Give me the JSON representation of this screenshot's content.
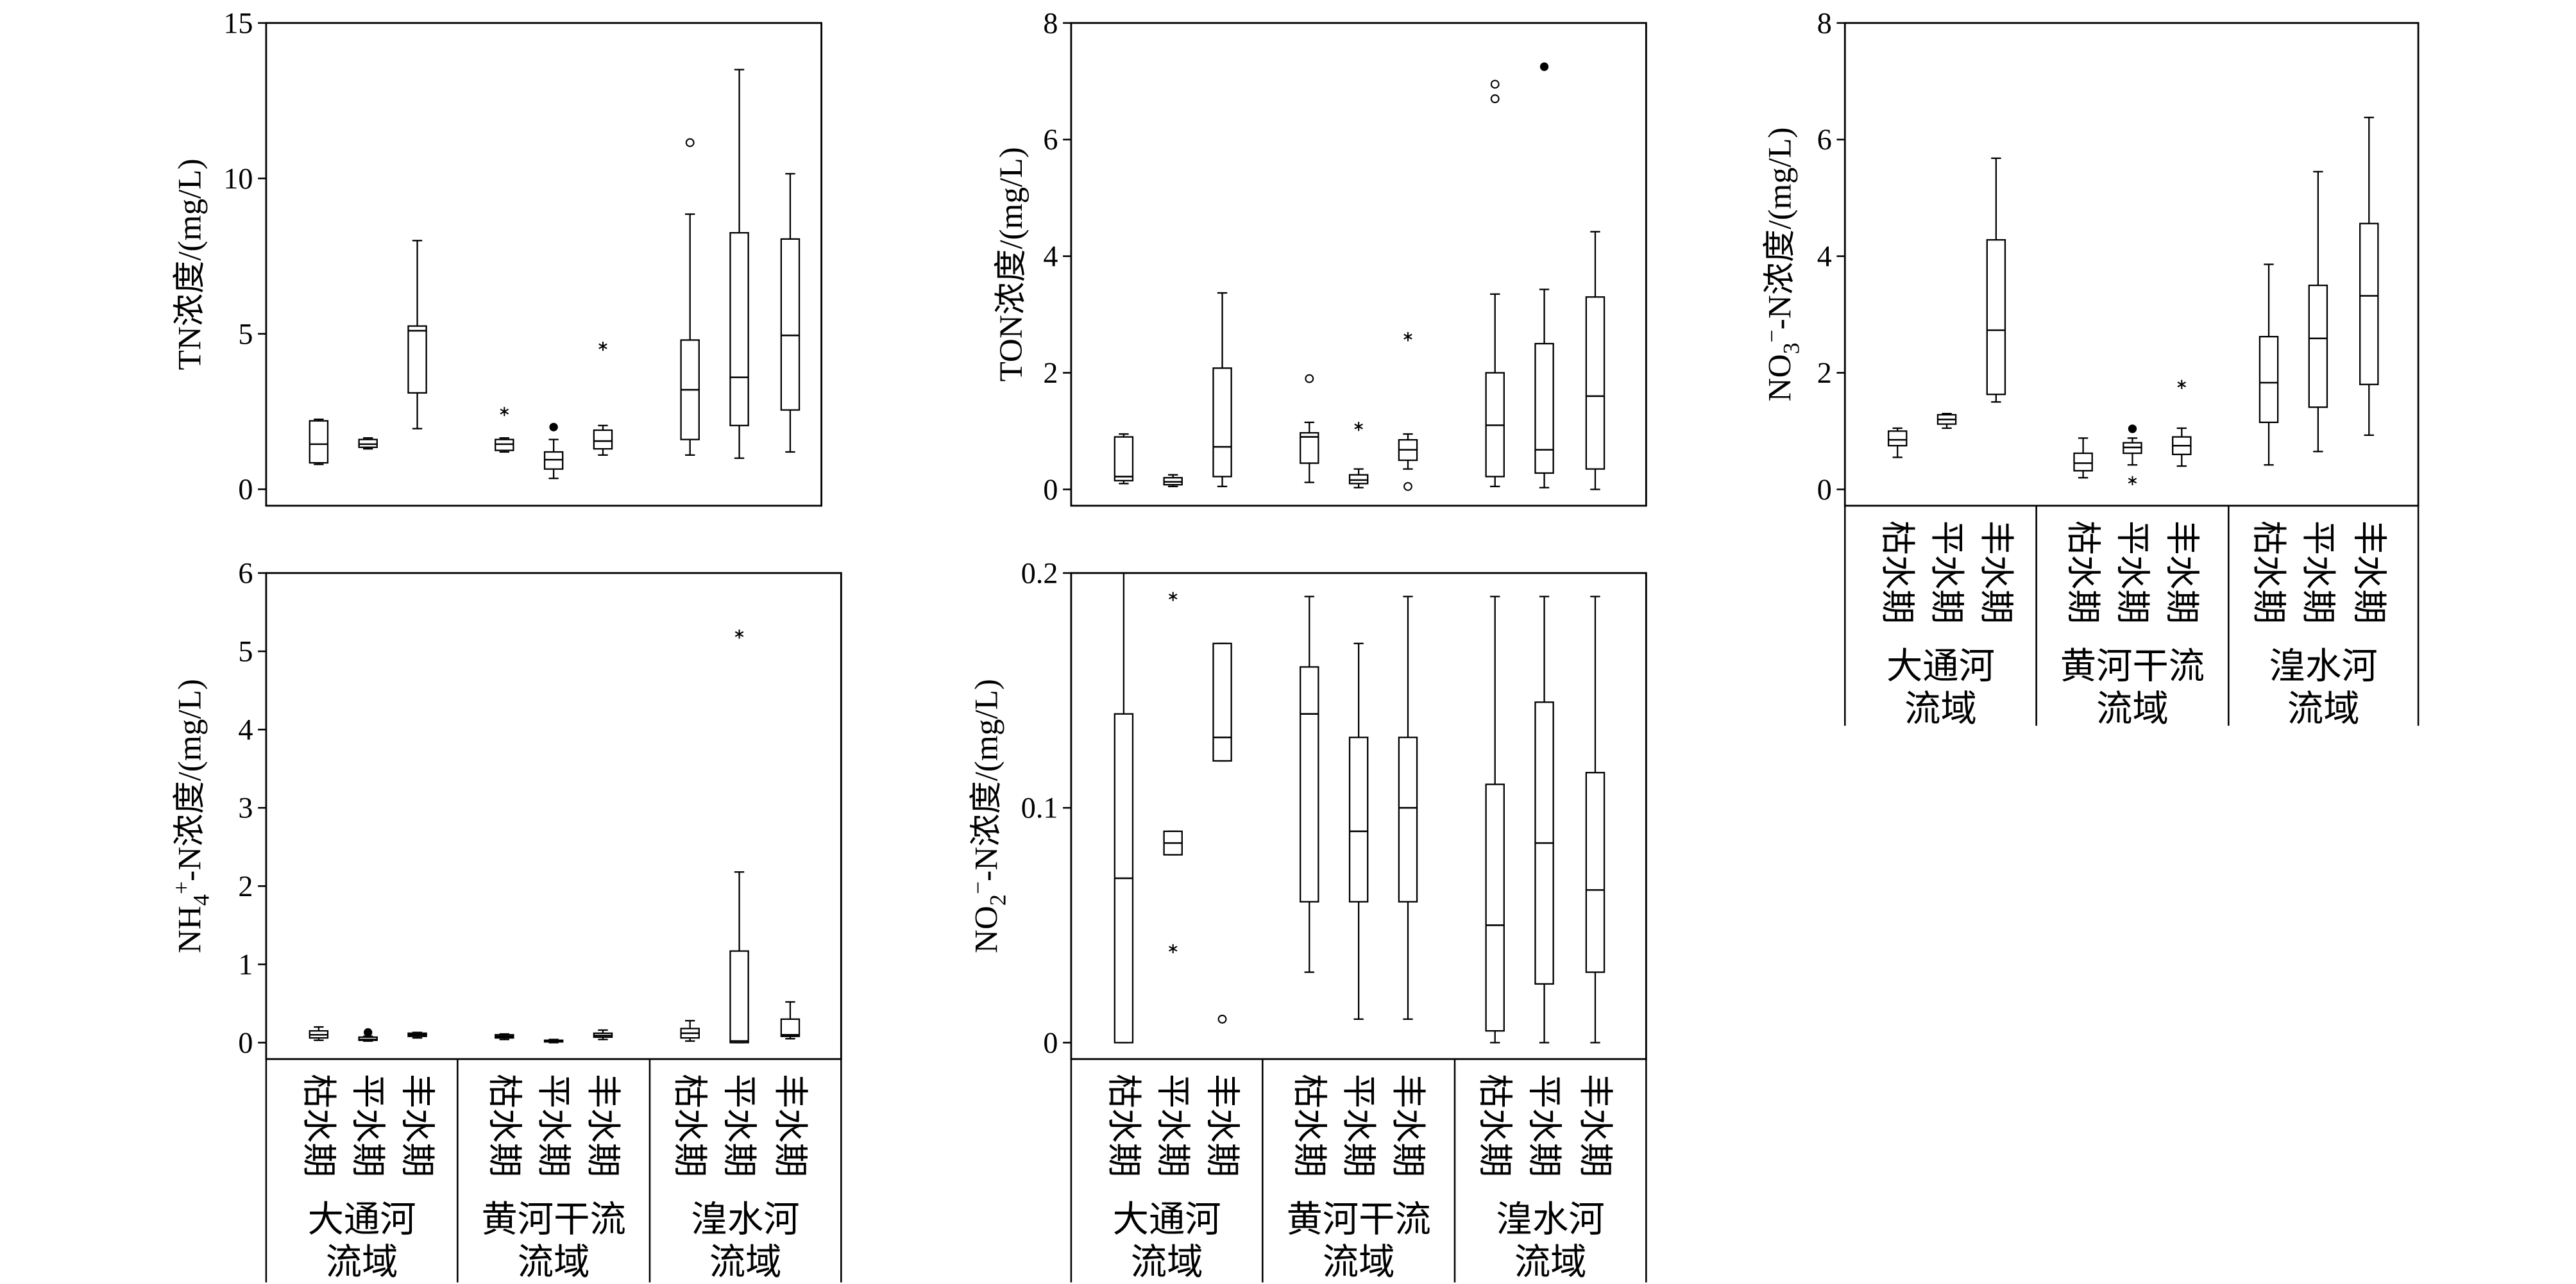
{
  "chart_data": [
    {
      "type": "box",
      "ylabel": [
        {
          "t": "TN浓度/(mg/L)"
        }
      ],
      "ylim": [
        -0.53,
        15
      ],
      "yticks": [
        0,
        5,
        10,
        15
      ],
      "boxes": [
        {
          "min": 0.8,
          "q1": 0.85,
          "median": 1.45,
          "q3": 2.2,
          "max": 2.25,
          "outliers": []
        },
        {
          "min": 1.3,
          "q1": 1.35,
          "median": 1.45,
          "q3": 1.6,
          "max": 1.65,
          "outliers": []
        },
        {
          "min": 1.95,
          "q1": 3.1,
          "median": 5.1,
          "q3": 5.25,
          "max": 8.0,
          "outliers": []
        },
        {
          "min": 1.2,
          "q1": 1.25,
          "median": 1.45,
          "q3": 1.6,
          "max": 1.65,
          "outliers": [
            {
              "v": 2.5,
              "m": "asterisk"
            }
          ]
        },
        {
          "min": 0.35,
          "q1": 0.65,
          "median": 0.95,
          "q3": 1.2,
          "max": 1.6,
          "outliers": [
            {
              "v": 2.0,
              "m": "filled-circle"
            }
          ]
        },
        {
          "min": 1.1,
          "q1": 1.3,
          "median": 1.55,
          "q3": 1.9,
          "max": 2.05,
          "outliers": [
            {
              "v": 4.6,
              "m": "asterisk"
            }
          ]
        },
        {
          "min": 1.1,
          "q1": 1.6,
          "median": 3.2,
          "q3": 4.8,
          "max": 8.85,
          "outliers": [
            {
              "v": 11.15,
              "m": "open-circle"
            }
          ]
        },
        {
          "min": 1.0,
          "q1": 2.05,
          "median": 3.6,
          "q3": 8.25,
          "max": 13.5,
          "outliers": []
        },
        {
          "min": 1.2,
          "q1": 2.55,
          "median": 4.95,
          "q3": 8.05,
          "max": 10.15,
          "outliers": []
        }
      ]
    },
    {
      "type": "box",
      "ylabel": [
        {
          "t": "TON浓度/(mg/L)"
        }
      ],
      "ylim": [
        -0.28,
        8
      ],
      "yticks": [
        0,
        2,
        4,
        6,
        8
      ],
      "boxes": [
        {
          "min": 0.1,
          "q1": 0.15,
          "median": 0.22,
          "q3": 0.9,
          "max": 0.95,
          "outliers": []
        },
        {
          "min": 0.05,
          "q1": 0.08,
          "median": 0.13,
          "q3": 0.2,
          "max": 0.25,
          "outliers": []
        },
        {
          "min": 0.05,
          "q1": 0.22,
          "median": 0.73,
          "q3": 2.08,
          "max": 3.37,
          "outliers": []
        },
        {
          "min": 0.12,
          "q1": 0.45,
          "median": 0.9,
          "q3": 0.97,
          "max": 1.15,
          "outliers": [
            {
              "v": 1.9,
              "m": "open-circle"
            }
          ]
        },
        {
          "min": 0.03,
          "q1": 0.1,
          "median": 0.16,
          "q3": 0.25,
          "max": 0.35,
          "outliers": [
            {
              "v": 1.08,
              "m": "asterisk"
            }
          ]
        },
        {
          "min": 0.35,
          "q1": 0.5,
          "median": 0.68,
          "q3": 0.85,
          "max": 0.95,
          "outliers": [
            {
              "v": 2.62,
              "m": "asterisk"
            },
            {
              "v": 0.05,
              "m": "open-circle"
            }
          ]
        },
        {
          "min": 0.05,
          "q1": 0.22,
          "median": 1.1,
          "q3": 2.0,
          "max": 3.35,
          "outliers": [
            {
              "v": 6.95,
              "m": "open-circle"
            },
            {
              "v": 6.7,
              "m": "open-circle"
            }
          ]
        },
        {
          "min": 0.03,
          "q1": 0.28,
          "median": 0.68,
          "q3": 2.5,
          "max": 3.43,
          "outliers": [
            {
              "v": 7.25,
              "m": "filled-circle"
            }
          ]
        },
        {
          "min": 0.0,
          "q1": 0.35,
          "median": 1.6,
          "q3": 3.3,
          "max": 4.42,
          "outliers": []
        }
      ]
    },
    {
      "type": "box",
      "ylabel": [
        {
          "t": "NO"
        },
        {
          "t": "3",
          "sub": true
        },
        {
          "t": "−",
          "sup": true
        },
        {
          "t": "-N浓度/(mg/L)"
        }
      ],
      "ylim": [
        -0.28,
        8
      ],
      "yticks": [
        0,
        2,
        4,
        6,
        8
      ],
      "categories": [
        "枯水期",
        "平水期",
        "丰水期",
        "枯水期",
        "平水期",
        "丰水期",
        "枯水期",
        "平水期",
        "丰水期"
      ],
      "groups": [
        [
          "大通河",
          "流域"
        ],
        [
          "黄河干流",
          "流域"
        ],
        [
          "湟水河",
          "流域"
        ]
      ],
      "boxes": [
        {
          "min": 0.55,
          "q1": 0.75,
          "median": 0.85,
          "q3": 1.0,
          "max": 1.05,
          "outliers": []
        },
        {
          "min": 1.05,
          "q1": 1.12,
          "median": 1.2,
          "q3": 1.28,
          "max": 1.3,
          "outliers": []
        },
        {
          "min": 1.5,
          "q1": 1.63,
          "median": 2.73,
          "q3": 4.28,
          "max": 5.68,
          "outliers": []
        },
        {
          "min": 0.2,
          "q1": 0.32,
          "median": 0.45,
          "q3": 0.62,
          "max": 0.88,
          "outliers": []
        },
        {
          "min": 0.42,
          "q1": 0.62,
          "median": 0.72,
          "q3": 0.8,
          "max": 0.88,
          "outliers": [
            {
              "v": 1.04,
              "m": "filled-circle"
            },
            {
              "v": 0.15,
              "m": "asterisk"
            }
          ]
        },
        {
          "min": 0.4,
          "q1": 0.6,
          "median": 0.75,
          "q3": 0.9,
          "max": 1.05,
          "outliers": [
            {
              "v": 1.8,
              "m": "asterisk"
            }
          ]
        },
        {
          "min": 0.42,
          "q1": 1.15,
          "median": 1.83,
          "q3": 2.62,
          "max": 3.86,
          "outliers": []
        },
        {
          "min": 0.65,
          "q1": 1.41,
          "median": 2.59,
          "q3": 3.5,
          "max": 5.45,
          "outliers": []
        },
        {
          "min": 0.93,
          "q1": 1.8,
          "median": 3.32,
          "q3": 4.56,
          "max": 6.38,
          "outliers": []
        }
      ]
    },
    {
      "type": "box",
      "ylabel": [
        {
          "t": "NH"
        },
        {
          "t": "4",
          "sub": true
        },
        {
          "t": "+",
          "sup": true
        },
        {
          "t": "-N浓度/(mg/L)"
        }
      ],
      "ylim": [
        -0.21,
        6
      ],
      "yticks": [
        0,
        1,
        2,
        3,
        4,
        5,
        6
      ],
      "categories": [
        "枯水期",
        "平水期",
        "丰水期",
        "枯水期",
        "平水期",
        "丰水期",
        "枯水期",
        "平水期",
        "丰水期"
      ],
      "groups": [
        [
          "大通河",
          "流域"
        ],
        [
          "黄河干流",
          "流域"
        ],
        [
          "湟水河",
          "流域"
        ]
      ],
      "boxes": [
        {
          "min": 0.03,
          "q1": 0.06,
          "median": 0.1,
          "q3": 0.15,
          "max": 0.2,
          "outliers": []
        },
        {
          "min": 0.02,
          "q1": 0.03,
          "median": 0.04,
          "q3": 0.07,
          "max": 0.08,
          "outliers": [
            {
              "v": 0.13,
              "m": "filled-circle"
            }
          ]
        },
        {
          "min": 0.06,
          "q1": 0.08,
          "median": 0.1,
          "q3": 0.12,
          "max": 0.13,
          "outliers": []
        },
        {
          "min": 0.04,
          "q1": 0.06,
          "median": 0.08,
          "q3": 0.1,
          "max": 0.11,
          "outliers": []
        },
        {
          "min": 0.0,
          "q1": 0.01,
          "median": 0.02,
          "q3": 0.03,
          "max": 0.04,
          "outliers": []
        },
        {
          "min": 0.04,
          "q1": 0.07,
          "median": 0.09,
          "q3": 0.12,
          "max": 0.16,
          "outliers": []
        },
        {
          "min": 0.02,
          "q1": 0.06,
          "median": 0.12,
          "q3": 0.18,
          "max": 0.28,
          "outliers": []
        },
        {
          "min": 0.0,
          "q1": 0.0,
          "median": 0.02,
          "q3": 1.17,
          "max": 2.18,
          "outliers": [
            {
              "v": 5.22,
              "m": "asterisk"
            }
          ]
        },
        {
          "min": 0.05,
          "q1": 0.08,
          "median": 0.1,
          "q3": 0.3,
          "max": 0.52,
          "outliers": []
        }
      ]
    },
    {
      "type": "box",
      "ylabel": [
        {
          "t": "NO"
        },
        {
          "t": "2",
          "sub": true
        },
        {
          "t": "−",
          "sup": true
        },
        {
          "t": "-N浓度/(mg/L)"
        }
      ],
      "ylim": [
        -0.007,
        0.2
      ],
      "yticks": [
        0,
        0.1,
        0.2
      ],
      "categories": [
        "枯水期",
        "平水期",
        "丰水期",
        "枯水期",
        "平水期",
        "丰水期",
        "枯水期",
        "平水期",
        "丰水期"
      ],
      "groups": [
        [
          "大通河",
          "流域"
        ],
        [
          "黄河干流",
          "流域"
        ],
        [
          "湟水河",
          "流域"
        ]
      ],
      "boxes": [
        {
          "min": 0.0,
          "q1": 0.0,
          "median": 0.07,
          "q3": 0.14,
          "max": 0.2,
          "outliers": []
        },
        {
          "min": 0.08,
          "q1": 0.08,
          "median": 0.085,
          "q3": 0.09,
          "max": 0.09,
          "outliers": [
            {
              "v": 0.19,
              "m": "asterisk"
            },
            {
              "v": 0.04,
              "m": "asterisk"
            }
          ]
        },
        {
          "min": 0.12,
          "q1": 0.12,
          "median": 0.13,
          "q3": 0.17,
          "max": 0.17,
          "outliers": [
            {
              "v": 0.01,
              "m": "open-circle"
            }
          ]
        },
        {
          "min": 0.03,
          "q1": 0.06,
          "median": 0.14,
          "q3": 0.16,
          "max": 0.19,
          "outliers": []
        },
        {
          "min": 0.01,
          "q1": 0.06,
          "median": 0.09,
          "q3": 0.13,
          "max": 0.17,
          "outliers": []
        },
        {
          "min": 0.01,
          "q1": 0.06,
          "median": 0.1,
          "q3": 0.13,
          "max": 0.19,
          "outliers": []
        },
        {
          "min": 0.0,
          "q1": 0.005,
          "median": 0.05,
          "q3": 0.11,
          "max": 0.19,
          "outliers": []
        },
        {
          "min": 0.0,
          "q1": 0.025,
          "median": 0.085,
          "q3": 0.145,
          "max": 0.19,
          "outliers": []
        },
        {
          "min": 0.0,
          "q1": 0.03,
          "median": 0.065,
          "q3": 0.115,
          "max": 0.19,
          "outliers": []
        }
      ]
    }
  ]
}
